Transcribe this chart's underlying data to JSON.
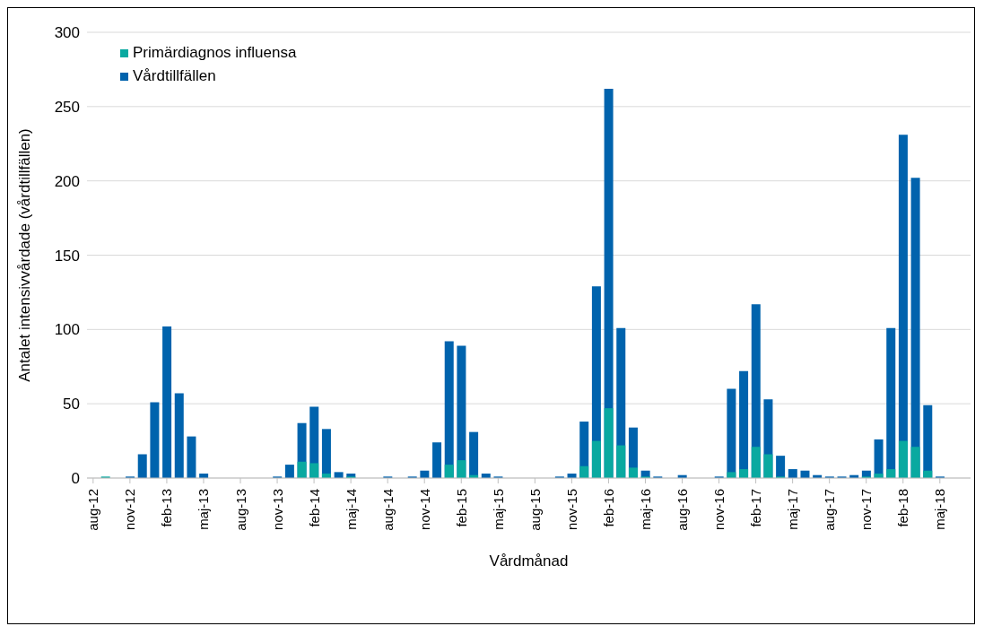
{
  "chart_data": {
    "type": "bar",
    "xlabel": "Vårdmånad",
    "ylabel": "Antalet intensivvårdade (vårdtillfällen)",
    "categories": [
      "aug-12",
      null,
      null,
      "nov-12",
      null,
      null,
      "feb-13",
      null,
      null,
      "maj-13",
      null,
      null,
      "aug-13",
      null,
      null,
      "nov-13",
      null,
      null,
      "feb-14",
      null,
      null,
      "maj-14",
      null,
      null,
      "aug-14",
      null,
      null,
      "nov-14",
      null,
      null,
      "feb-15",
      null,
      null,
      "maj-15",
      null,
      null,
      "aug-15",
      null,
      null,
      "nov-15",
      null,
      null,
      "feb-16",
      null,
      null,
      "maj-16",
      null,
      null,
      "aug-16",
      null,
      null,
      "nov-16",
      null,
      null,
      "feb-17",
      null,
      null,
      "maj-17",
      null,
      null,
      "aug-17",
      null,
      null,
      "nov-17",
      null,
      null,
      "feb-18",
      null,
      null,
      "maj-18",
      null,
      null
    ],
    "series": [
      {
        "name": "Vårdtillfällen",
        "color": "#0063ad",
        "values": [
          0,
          null,
          0,
          1,
          16,
          51,
          102,
          57,
          28,
          3,
          0,
          0,
          0,
          0,
          0,
          1,
          9,
          37,
          48,
          33,
          4,
          3,
          0,
          0,
          1,
          0,
          1,
          5,
          24,
          92,
          89,
          31,
          3,
          1,
          0,
          0,
          0,
          0,
          1,
          3,
          38,
          129,
          262,
          101,
          34,
          5,
          1,
          0,
          2,
          0,
          0,
          1,
          60,
          72,
          117,
          53,
          15,
          6,
          5,
          2,
          1,
          1,
          2,
          5,
          26,
          101,
          231,
          202,
          49,
          1,
          0,
          0
        ]
      },
      {
        "name": "Primärdiagnos influensa",
        "color": "#09a9a0",
        "values": [
          0,
          1,
          0,
          0,
          0,
          0,
          0,
          0,
          0,
          0,
          0,
          0,
          0,
          0,
          0,
          0,
          0,
          11,
          10,
          3,
          0,
          1,
          0,
          0,
          0,
          0,
          0,
          0,
          0,
          9,
          12,
          2,
          0,
          0,
          0,
          0,
          0,
          0,
          0,
          0,
          8,
          25,
          47,
          22,
          7,
          1,
          0,
          0,
          0,
          0,
          0,
          0,
          4,
          6,
          21,
          16,
          1,
          0,
          0,
          0,
          0,
          0,
          0,
          1,
          3,
          6,
          25,
          21,
          5,
          0,
          0,
          0
        ]
      }
    ],
    "ylim": [
      0,
      300
    ],
    "yticks": [
      0,
      50,
      100,
      150,
      200,
      250,
      300
    ],
    "grid": "y",
    "legend": "top left"
  }
}
